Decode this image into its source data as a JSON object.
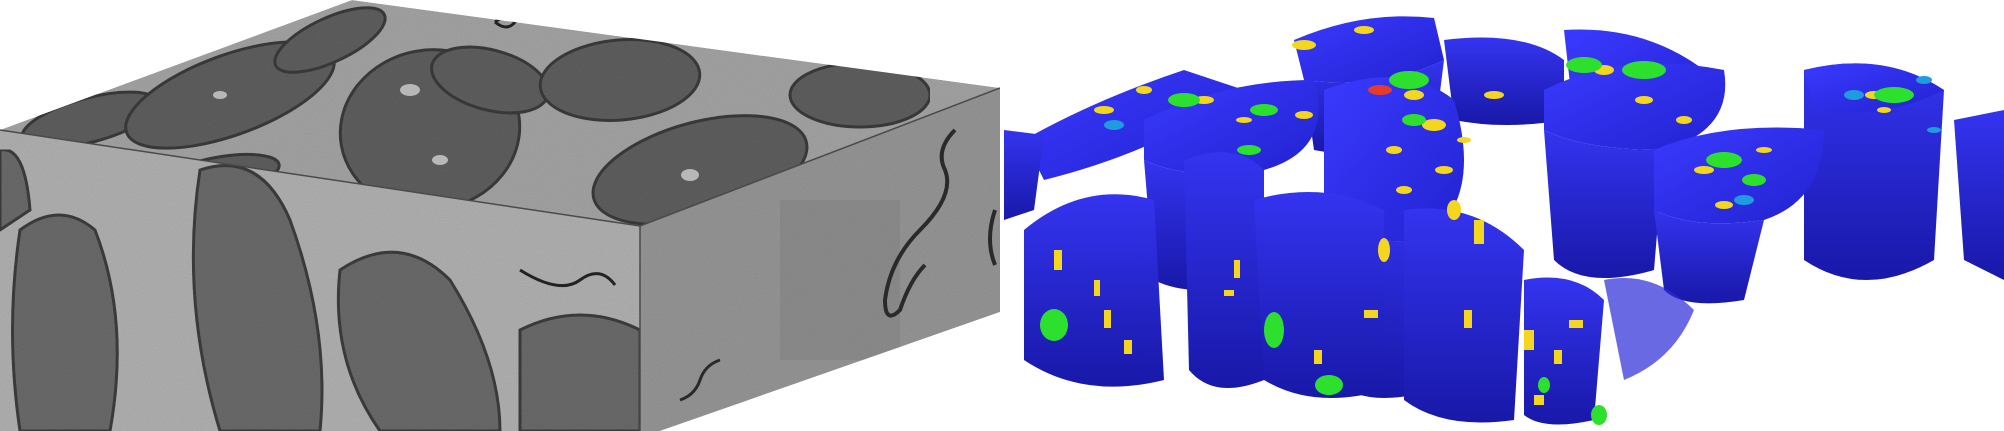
{
  "figure": {
    "panels": [
      {
        "id": "em-volume",
        "kind": "grayscale electron-microscopy block render"
      },
      {
        "id": "segmentation",
        "kind": "3D segmentation render"
      }
    ],
    "colors": {
      "background": "#ffffff",
      "em_top": "#9a9a9a",
      "em_front": "#a8a8a8",
      "em_side": "#8e8e8e",
      "cell_gray": "#5a5a5a",
      "cell_blue": "#2828e6",
      "cell_blue_dark": "#1a1ab4",
      "organelle_yellow": "#f5d61e",
      "organelle_green": "#2ee02e",
      "organelle_cyan": "#1f9be0",
      "organelle_red": "#e63a2a"
    }
  }
}
